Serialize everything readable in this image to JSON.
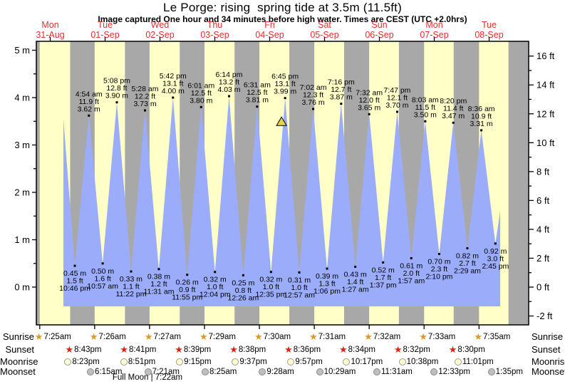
{
  "header": {
    "title": "Le Porge: rising  spring tide at 3.5m (11.5ft)",
    "subtitle": "Image captured One hour and 34 minutes before high water. Times are CEST (UTC +2.0hrs)"
  },
  "days": [
    {
      "name": "Mon",
      "date": "31-Aug"
    },
    {
      "name": "Tue",
      "date": "01-Sep"
    },
    {
      "name": "Wed",
      "date": "02-Sep"
    },
    {
      "name": "Thu",
      "date": "03-Sep"
    },
    {
      "name": "Fri",
      "date": "04-Sep"
    },
    {
      "name": "Sat",
      "date": "05-Sep"
    },
    {
      "name": "Sun",
      "date": "06-Sep"
    },
    {
      "name": "Mon",
      "date": "07-Sep"
    },
    {
      "name": "Tue",
      "date": "08-Sep"
    }
  ],
  "chart_data": {
    "type": "area",
    "title": "Le Porge tide height curve",
    "ylabel_left": "metres",
    "ylabel_right": "feet",
    "ylim_m": [
      -0.78,
      5.19
    ],
    "ylim_ft": [
      -2.6,
      17.0
    ],
    "y_ticks_left": [
      "0 m",
      "1 m",
      "2 m",
      "3 m",
      "4 m",
      "5 m"
    ],
    "y_ticks_right": [
      "-2 ft",
      "0 ft",
      "2 ft",
      "4 ft",
      "6 ft",
      "8 ft",
      "10 ft",
      "12 ft",
      "14 ft",
      "16 ft"
    ],
    "colors": {
      "daytime_band": "#ffffc8",
      "night_band": "#a8a8a8",
      "tide_fill": "#9badfa",
      "marker_fill": "#e8d24c",
      "day_label_red": "#e03030"
    },
    "tides": [
      {
        "day": 0,
        "time": "10:46 pm",
        "height_m": 0.45,
        "height_ft": 1.5,
        "type": "low"
      },
      {
        "day": 1,
        "time": "4:54 am",
        "height_m": 3.62,
        "height_ft": 11.9,
        "type": "high"
      },
      {
        "day": 1,
        "time": "10:57 am",
        "height_m": 0.5,
        "height_ft": 1.6,
        "type": "low"
      },
      {
        "day": 1,
        "time": "5:08 pm",
        "height_m": 3.9,
        "height_ft": 12.8,
        "type": "high"
      },
      {
        "day": 1,
        "time": "11:22 pm",
        "height_m": 0.33,
        "height_ft": 1.1,
        "type": "low"
      },
      {
        "day": 2,
        "time": "5:28 am",
        "height_m": 3.73,
        "height_ft": 12.2,
        "type": "high"
      },
      {
        "day": 2,
        "time": "11:31 am",
        "height_m": 0.38,
        "height_ft": 1.2,
        "type": "low"
      },
      {
        "day": 2,
        "time": "5:42 pm",
        "height_m": 4.0,
        "height_ft": 13.1,
        "type": "high"
      },
      {
        "day": 2,
        "time": "11:55 pm",
        "height_m": 0.26,
        "height_ft": 0.9,
        "type": "low"
      },
      {
        "day": 3,
        "time": "6:01 am",
        "height_m": 3.8,
        "height_ft": 12.5,
        "type": "high"
      },
      {
        "day": 3,
        "time": "12:04 pm",
        "height_m": 0.32,
        "height_ft": 1.0,
        "type": "low"
      },
      {
        "day": 3,
        "time": "6:14 pm",
        "height_m": 4.03,
        "height_ft": 13.2,
        "type": "high"
      },
      {
        "day": 4,
        "time": "12:26 am",
        "height_m": 0.25,
        "height_ft": 0.8,
        "type": "low"
      },
      {
        "day": 4,
        "time": "6:31 am",
        "height_m": 3.81,
        "height_ft": 12.5,
        "type": "high"
      },
      {
        "day": 4,
        "time": "12:35 pm",
        "height_m": 0.32,
        "height_ft": 1.0,
        "type": "low"
      },
      {
        "day": 4,
        "time": "6:45 pm",
        "height_m": 3.99,
        "height_ft": 13.1,
        "type": "high"
      },
      {
        "day": 5,
        "time": "12:57 am",
        "height_m": 0.31,
        "height_ft": 1.0,
        "type": "low"
      },
      {
        "day": 5,
        "time": "7:02 am",
        "height_m": 3.76,
        "height_ft": 12.3,
        "type": "high"
      },
      {
        "day": 5,
        "time": "1:06 pm",
        "height_m": 0.39,
        "height_ft": 1.3,
        "type": "low"
      },
      {
        "day": 5,
        "time": "7:16 pm",
        "height_m": 3.87,
        "height_ft": 12.7,
        "type": "high"
      },
      {
        "day": 6,
        "time": "1:27 am",
        "height_m": 0.43,
        "height_ft": 1.4,
        "type": "low"
      },
      {
        "day": 6,
        "time": "7:32 am",
        "height_m": 3.65,
        "height_ft": 12.0,
        "type": "high"
      },
      {
        "day": 6,
        "time": "1:37 pm",
        "height_m": 0.52,
        "height_ft": 1.7,
        "type": "low"
      },
      {
        "day": 6,
        "time": "7:47 pm",
        "height_m": 3.7,
        "height_ft": 12.1,
        "type": "high"
      },
      {
        "day": 7,
        "time": "1:57 am",
        "height_m": 0.61,
        "height_ft": 2.0,
        "type": "low"
      },
      {
        "day": 7,
        "time": "8:03 am",
        "height_m": 3.5,
        "height_ft": 11.5,
        "type": "high"
      },
      {
        "day": 7,
        "time": "2:10 pm",
        "height_m": 0.7,
        "height_ft": 2.3,
        "type": "low"
      },
      {
        "day": 7,
        "time": "8:20 pm",
        "height_m": 3.47,
        "height_ft": 11.4,
        "type": "high"
      },
      {
        "day": 8,
        "time": "2:29 am",
        "height_m": 0.82,
        "height_ft": 2.7,
        "type": "low"
      },
      {
        "day": 8,
        "time": "8:36 am",
        "height_m": 3.31,
        "height_ft": 10.9,
        "type": "high"
      },
      {
        "day": 8,
        "time": "2:45 pm",
        "height_m": 0.92,
        "height_ft": 3.0,
        "type": "low"
      }
    ],
    "marker": {
      "meaning": "current tide position",
      "shape": "triangle",
      "height_m": 3.5,
      "minutes_before_high": 94,
      "before_high_on_day": 4,
      "before_high_time": "6:45 pm"
    }
  },
  "astro": {
    "rows": [
      {
        "id": "sunrise",
        "label": "Sunrise",
        "icon": "sunrise-star-icon",
        "entries": [
          {
            "day": 0,
            "time": "7:25am"
          },
          {
            "day": 1,
            "time": "7:26am"
          },
          {
            "day": 2,
            "time": "7:27am"
          },
          {
            "day": 3,
            "time": "7:29am"
          },
          {
            "day": 4,
            "time": "7:30am"
          },
          {
            "day": 5,
            "time": "7:31am"
          },
          {
            "day": 6,
            "time": "7:32am"
          },
          {
            "day": 7,
            "time": "7:33am"
          },
          {
            "day": 8,
            "time": "7:35am"
          }
        ]
      },
      {
        "id": "sunset",
        "label": "Sunset",
        "icon": "sunset-star-icon",
        "entries": [
          {
            "day": 0,
            "time": "8:43pm"
          },
          {
            "day": 1,
            "time": "8:41pm"
          },
          {
            "day": 2,
            "time": "8:39pm"
          },
          {
            "day": 3,
            "time": "8:38pm"
          },
          {
            "day": 4,
            "time": "8:36pm"
          },
          {
            "day": 5,
            "time": "8:34pm"
          },
          {
            "day": 6,
            "time": "8:32pm"
          },
          {
            "day": 7,
            "time": "8:30pm"
          }
        ]
      },
      {
        "id": "moonrise",
        "label": "Moonrise",
        "icon": "moonrise-icon",
        "entries": [
          {
            "day": 0,
            "time": "8:23pm"
          },
          {
            "day": 1,
            "time": "8:51pm"
          },
          {
            "day": 2,
            "time": "9:15pm"
          },
          {
            "day": 3,
            "time": "9:37pm"
          },
          {
            "day": 4,
            "time": "9:57pm"
          },
          {
            "day": 5,
            "time": "10:17pm"
          },
          {
            "day": 6,
            "time": "10:38pm"
          },
          {
            "day": 7,
            "time": "11:01pm"
          }
        ]
      },
      {
        "id": "moonset",
        "label": "Moonset",
        "icon": "moonset-icon",
        "entries": [
          {
            "day": 1,
            "time": "6:15am"
          },
          {
            "day": 2,
            "time": "7:21am"
          },
          {
            "day": 3,
            "time": "8:25am"
          },
          {
            "day": 4,
            "time": "9:28am"
          },
          {
            "day": 5,
            "time": "10:29am"
          },
          {
            "day": 6,
            "time": "11:31am"
          },
          {
            "day": 7,
            "time": "12:33pm"
          },
          {
            "day": 8,
            "time": "1:35pm"
          }
        ]
      }
    ],
    "note": "Full Moon | 7:22am"
  }
}
